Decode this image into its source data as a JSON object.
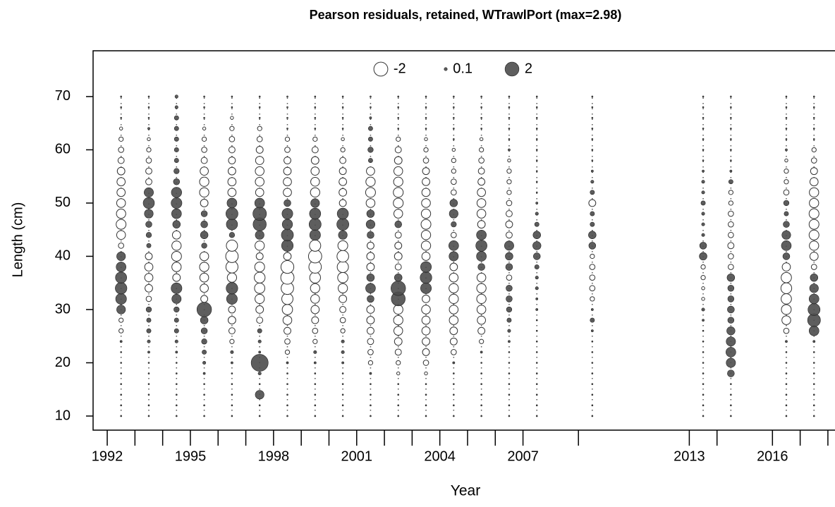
{
  "chart_data": {
    "type": "bubble",
    "title": "Pearson residuals, retained, WTrawlPort (max=2.98)",
    "x_label": "Year",
    "y_label": "Length (cm)",
    "xlim": [
      1991.49,
      2018.46
    ],
    "ylim": [
      7.35,
      78.6
    ],
    "xticks": [
      1992,
      1995,
      1998,
      2001,
      2004,
      2007,
      2013,
      2016
    ],
    "xminorticks": [
      1993,
      1994,
      1996,
      1997,
      1999,
      2000,
      2002,
      2003,
      2005,
      2006,
      2009,
      2014,
      2017,
      2018
    ],
    "yticks": [
      10,
      20,
      30,
      40,
      50,
      60,
      70
    ],
    "positive_color": "#4d4d4d",
    "negative_color": "#ffffff",
    "legend": {
      "values": [
        -2,
        0.1,
        2
      ]
    },
    "y": [
      10,
      12,
      14,
      16,
      18,
      20,
      22,
      24,
      26,
      28,
      30,
      32,
      34,
      36,
      38,
      40,
      42,
      44,
      46,
      48,
      50,
      52,
      54,
      56,
      58,
      60,
      62,
      64,
      66,
      68,
      70
    ],
    "columns": [
      {
        "x": 1992.5,
        "values": [
          0.02,
          0.02,
          0.02,
          0.02,
          0.02,
          0.02,
          0.02,
          0.05,
          -0.2,
          -0.2,
          0.8,
          1.2,
          1.4,
          1.3,
          1.0,
          0.8,
          -0.3,
          -0.8,
          -1.0,
          -0.9,
          -0.8,
          -0.7,
          -0.7,
          -0.6,
          -0.4,
          -0.3,
          -0.2,
          -0.1,
          0.02,
          0.02,
          0.02
        ]
      },
      {
        "x": 1993.5,
        "values": [
          0.02,
          0.02,
          0.02,
          0.02,
          0.02,
          0.02,
          0.05,
          0.1,
          0.2,
          0.2,
          0.3,
          -0.3,
          -0.6,
          -0.7,
          -0.7,
          -0.5,
          0.2,
          0.3,
          0.4,
          0.8,
          1.3,
          0.9,
          -0.4,
          -0.4,
          -0.3,
          -0.2,
          -0.1,
          0.05,
          0.02,
          0.02,
          0.02
        ]
      },
      {
        "x": 1994.5,
        "values": [
          0.02,
          0.02,
          0.02,
          0.02,
          0.02,
          0.02,
          0.05,
          0.1,
          0.2,
          0.2,
          0.3,
          0.9,
          1.2,
          -0.6,
          -0.9,
          -1.0,
          -0.9,
          -0.7,
          0.6,
          1.0,
          1.2,
          1.1,
          0.4,
          0.3,
          0.2,
          0.2,
          0.2,
          0.2,
          0.2,
          0.1,
          0.1
        ]
      },
      {
        "x": 1995.5,
        "values": [
          0.02,
          0.02,
          0.02,
          0.02,
          0.05,
          0.1,
          0.2,
          0.3,
          0.4,
          0.6,
          2.2,
          -0.5,
          -0.7,
          -0.8,
          -0.9,
          -0.8,
          0.3,
          0.6,
          0.5,
          0.4,
          -0.6,
          -0.9,
          -0.9,
          -0.7,
          -0.4,
          -0.3,
          -0.2,
          -0.1,
          0.02,
          0.02,
          0.02
        ]
      },
      {
        "x": 1996.5,
        "values": [
          0.02,
          0.02,
          0.02,
          0.02,
          0.02,
          0.05,
          0.1,
          -0.2,
          -0.4,
          -0.6,
          -0.5,
          1.2,
          1.4,
          -0.9,
          -1.5,
          -1.6,
          -1.3,
          0.3,
          1.3,
          1.5,
          1.0,
          -0.7,
          -0.7,
          -0.6,
          -0.5,
          -0.4,
          -0.3,
          -0.2,
          -0.1,
          0.02,
          0.02
        ]
      },
      {
        "x": 1997.5,
        "values": [
          0.02,
          0.02,
          0.8,
          0.02,
          0.1,
          2.98,
          0.05,
          0.1,
          0.2,
          -0.4,
          -0.6,
          -0.9,
          -1.1,
          -1.2,
          -1.0,
          -0.5,
          -0.9,
          0.8,
          1.8,
          1.9,
          1.0,
          -0.7,
          -0.8,
          -0.8,
          -0.7,
          -0.5,
          -0.3,
          -0.2,
          0.02,
          0.02,
          0.02
        ]
      },
      {
        "x": 1998.5,
        "values": [
          0.02,
          0.02,
          0.02,
          0.02,
          0.02,
          0.05,
          -0.2,
          -0.3,
          -0.5,
          -0.8,
          -1.1,
          -1.3,
          -1.6,
          -1.8,
          -1.7,
          -0.6,
          1.4,
          1.5,
          1.1,
          1.2,
          0.5,
          -0.7,
          -0.7,
          -0.6,
          -0.5,
          -0.3,
          -0.2,
          0.02,
          0.02,
          0.02,
          0.02
        ]
      },
      {
        "x": 1999.5,
        "values": [
          0.02,
          0.02,
          0.02,
          0.02,
          0.02,
          0.05,
          0.1,
          -0.2,
          -0.3,
          -0.5,
          -0.7,
          -0.8,
          -0.9,
          -1.2,
          -1.6,
          -1.8,
          -1.3,
          1.2,
          1.5,
          1.3,
          0.8,
          -0.9,
          -0.8,
          -0.7,
          -0.6,
          -0.4,
          -0.2,
          0.02,
          0.02,
          0.02,
          0.02
        ]
      },
      {
        "x": 2000.5,
        "values": [
          0.02,
          0.02,
          0.02,
          0.02,
          0.02,
          0.05,
          0.1,
          0.1,
          -0.2,
          -0.3,
          -0.4,
          -0.6,
          -0.9,
          -1.1,
          -1.3,
          -1.4,
          -1.0,
          0.8,
          1.5,
          1.3,
          -0.5,
          -0.6,
          -0.6,
          -0.5,
          -0.4,
          -0.2,
          -0.1,
          0.02,
          0.02,
          0.02,
          0.02
        ]
      },
      {
        "x": 2001.5,
        "values": [
          0.02,
          0.02,
          0.02,
          0.02,
          0.05,
          -0.2,
          -0.3,
          -0.4,
          -0.5,
          -0.6,
          -0.6,
          0.5,
          1.0,
          0.6,
          -0.6,
          -0.6,
          -0.5,
          0.5,
          0.8,
          0.6,
          -0.8,
          -1.0,
          -0.9,
          -0.7,
          0.2,
          0.3,
          0.2,
          0.2,
          0.05,
          0.02,
          0.02
        ]
      },
      {
        "x": 2002.5,
        "values": [
          0.02,
          0.02,
          0.02,
          0.02,
          -0.1,
          -0.2,
          -0.4,
          -0.6,
          -0.8,
          -0.9,
          -0.9,
          2.0,
          2.2,
          0.6,
          -0.4,
          -0.6,
          -0.5,
          -0.4,
          0.5,
          -0.8,
          -1.0,
          -1.0,
          -0.9,
          -0.8,
          -0.6,
          -0.4,
          -0.2,
          0.02,
          0.02,
          0.02,
          0.02
        ]
      },
      {
        "x": 2003.5,
        "values": [
          0.02,
          0.02,
          0.02,
          0.02,
          -0.1,
          -0.3,
          -0.5,
          -0.6,
          -0.7,
          -0.7,
          -0.8,
          -0.6,
          1.2,
          1.4,
          1.2,
          -0.7,
          -0.9,
          -0.9,
          -1.0,
          -0.9,
          -0.8,
          -0.7,
          -0.6,
          -0.5,
          -0.3,
          -0.2,
          -0.1,
          0.02,
          0.02,
          0.02,
          0.02
        ]
      },
      {
        "x": 2004.5,
        "values": [
          0.02,
          0.02,
          0.02,
          0.02,
          0.02,
          0.05,
          -0.3,
          -0.5,
          -0.6,
          -0.8,
          -0.8,
          -0.9,
          -0.9,
          -0.8,
          -0.6,
          0.9,
          1.0,
          -0.3,
          0.3,
          0.8,
          0.6,
          -0.3,
          -0.3,
          -0.2,
          -0.2,
          -0.1,
          0.02,
          0.02,
          0.02,
          0.02,
          0.02
        ]
      },
      {
        "x": 2005.5,
        "values": [
          0.02,
          0.02,
          0.02,
          0.02,
          0.02,
          0.02,
          0.05,
          -0.2,
          -0.5,
          -0.7,
          -0.8,
          -0.9,
          -0.9,
          -0.8,
          0.5,
          1.0,
          1.3,
          1.0,
          -0.6,
          -0.8,
          -0.8,
          -0.7,
          -0.5,
          -0.4,
          -0.3,
          -0.2,
          -0.1,
          0.02,
          0.02,
          0.02,
          0.02
        ]
      },
      {
        "x": 2006.5,
        "values": [
          0.02,
          0.02,
          0.02,
          0.02,
          0.02,
          0.02,
          0.02,
          0.05,
          0.1,
          0.2,
          0.3,
          0.4,
          0.4,
          -0.3,
          0.5,
          0.6,
          0.9,
          -0.4,
          -0.5,
          -0.4,
          -0.3,
          -0.2,
          -0.2,
          -0.2,
          -0.1,
          0.05,
          0.02,
          0.02,
          0.02,
          0.02,
          0.02
        ]
      },
      {
        "x": 2007.5,
        "values": [
          0.02,
          0.02,
          0.02,
          0.02,
          0.02,
          0.02,
          0.02,
          0.02,
          0.02,
          0.02,
          0.05,
          0.05,
          0.1,
          0.1,
          0.2,
          0.5,
          0.7,
          0.6,
          0.2,
          0.1,
          0.05,
          0.02,
          0.02,
          0.02,
          0.02,
          0.02,
          0.02,
          0.02,
          0.02,
          0.02,
          0.02
        ]
      },
      {
        "x": 2009.5,
        "values": [
          0.02,
          0.02,
          0.02,
          0.02,
          0.02,
          0.02,
          0.02,
          0.02,
          0.05,
          0.2,
          0.05,
          -0.2,
          -0.3,
          -0.3,
          -0.3,
          -0.2,
          0.5,
          0.6,
          0.2,
          0.2,
          -0.5,
          0.2,
          0.1,
          0.05,
          0.02,
          0.02,
          0.02,
          0.02,
          0.02,
          0.02,
          0.02
        ]
      },
      {
        "x": 2013.5,
        "values": [
          0.02,
          0.02,
          0.02,
          0.02,
          0.02,
          0.02,
          0.02,
          0.02,
          0.02,
          0.05,
          0.1,
          -0.1,
          -0.1,
          -0.2,
          -0.2,
          0.6,
          0.5,
          0.1,
          0.1,
          0.1,
          0.2,
          0.1,
          0.1,
          0.05,
          0.02,
          0.02,
          0.02,
          0.02,
          0.02,
          0.02,
          0.02
        ]
      },
      {
        "x": 2014.5,
        "values": [
          0.02,
          0.02,
          0.02,
          0.02,
          0.5,
          0.9,
          1.0,
          0.9,
          0.7,
          0.4,
          0.5,
          0.4,
          0.4,
          0.6,
          -0.3,
          -0.3,
          -0.4,
          -0.3,
          -0.3,
          -0.3,
          -0.2,
          -0.2,
          0.2,
          0.05,
          0.02,
          0.02,
          0.02,
          0.02,
          0.02,
          0.02,
          0.02
        ]
      },
      {
        "x": 2016.5,
        "values": [
          0.02,
          0.02,
          0.02,
          0.02,
          0.02,
          0.02,
          0.02,
          0.05,
          -0.3,
          -0.8,
          -1.0,
          -1.1,
          -1.2,
          -1.1,
          -0.7,
          0.5,
          1.0,
          0.8,
          0.4,
          0.2,
          0.3,
          -0.3,
          -0.2,
          -0.2,
          -0.1,
          0.05,
          0.02,
          0.02,
          0.02,
          0.02,
          0.02
        ]
      },
      {
        "x": 2017.5,
        "values": [
          0.02,
          0.02,
          0.02,
          0.02,
          0.02,
          0.02,
          0.02,
          0.05,
          1.0,
          1.7,
          1.5,
          1.0,
          0.8,
          0.6,
          -0.3,
          -0.7,
          -0.9,
          -1.0,
          -1.0,
          -1.0,
          -0.9,
          -0.9,
          -0.7,
          -0.5,
          -0.3,
          -0.2,
          0.02,
          0.02,
          0.02,
          0.02,
          0.02
        ]
      }
    ]
  }
}
